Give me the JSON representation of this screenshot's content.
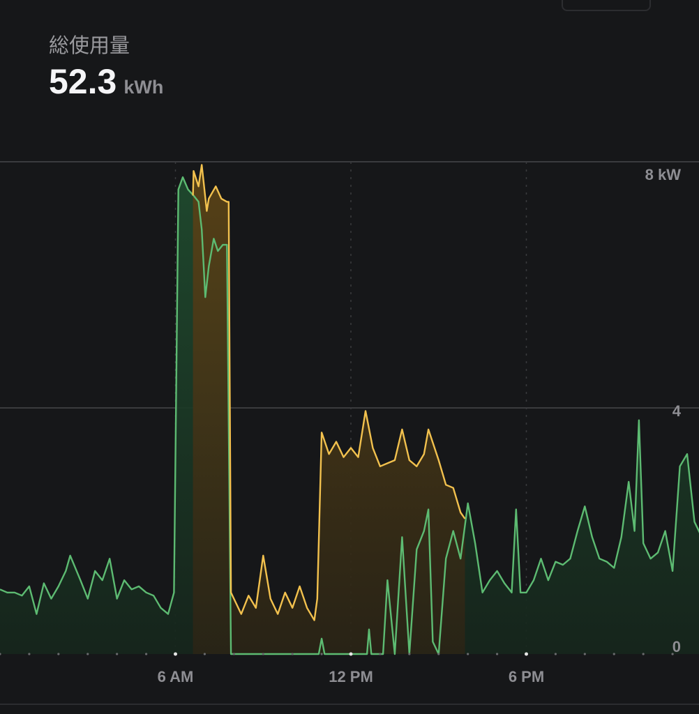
{
  "header": {
    "title": "総使用量",
    "total_value": "52.3",
    "total_unit": "kWh"
  },
  "colors": {
    "background": "#161719",
    "green": "#5dbb72",
    "yellow": "#f2c14e"
  },
  "chart_data": {
    "type": "area",
    "x_unit": "hour of day",
    "xlim": [
      0,
      24
    ],
    "ylim": [
      0,
      8
    ],
    "x_ticks": [
      {
        "value": 6,
        "label": "6 AM"
      },
      {
        "value": 12,
        "label": "12 PM"
      },
      {
        "value": 18,
        "label": "6 PM"
      }
    ],
    "y_ticks": [
      {
        "value": 8,
        "label": "8 kW"
      },
      {
        "value": 4,
        "label": "4"
      },
      {
        "value": 0,
        "label": "0"
      }
    ],
    "grid": true,
    "series": [
      {
        "color": "#5dbb72",
        "points": [
          [
            0,
            1.05
          ],
          [
            0.25,
            1.0
          ],
          [
            0.5,
            1.0
          ],
          [
            0.75,
            0.95
          ],
          [
            1.0,
            1.1
          ],
          [
            1.25,
            0.65
          ],
          [
            1.5,
            1.15
          ],
          [
            1.75,
            0.9
          ],
          [
            2.0,
            1.1
          ],
          [
            2.25,
            1.35
          ],
          [
            2.4,
            1.6
          ],
          [
            2.75,
            1.2
          ],
          [
            3.0,
            0.9
          ],
          [
            3.25,
            1.35
          ],
          [
            3.5,
            1.2
          ],
          [
            3.75,
            1.55
          ],
          [
            4.0,
            0.9
          ],
          [
            4.25,
            1.2
          ],
          [
            4.5,
            1.05
          ],
          [
            4.75,
            1.1
          ],
          [
            5.0,
            1.0
          ],
          [
            5.25,
            0.95
          ],
          [
            5.5,
            0.75
          ],
          [
            5.75,
            0.65
          ],
          [
            5.95,
            1.0
          ],
          [
            6.1,
            7.55
          ],
          [
            6.25,
            7.75
          ],
          [
            6.43,
            7.55
          ],
          [
            6.62,
            7.45
          ],
          [
            6.79,
            7.35
          ],
          [
            6.9,
            6.9
          ],
          [
            7.02,
            5.8
          ],
          [
            7.14,
            6.3
          ],
          [
            7.31,
            6.75
          ],
          [
            7.45,
            6.55
          ],
          [
            7.62,
            6.65
          ],
          [
            7.76,
            6.65
          ],
          [
            7.9,
            0
          ],
          [
            8.0,
            0
          ],
          [
            10.9,
            0
          ],
          [
            11.0,
            0.25
          ],
          [
            11.1,
            0
          ],
          [
            12.55,
            0
          ],
          [
            12.62,
            0.4
          ],
          [
            12.7,
            0
          ],
          [
            13.1,
            0
          ],
          [
            13.25,
            1.2
          ],
          [
            13.5,
            0
          ],
          [
            13.75,
            1.9
          ],
          [
            14.0,
            0
          ],
          [
            14.25,
            1.7
          ],
          [
            14.5,
            2.0
          ],
          [
            14.65,
            2.35
          ],
          [
            14.8,
            0.2
          ],
          [
            15.0,
            0
          ],
          [
            15.25,
            1.55
          ],
          [
            15.5,
            2.0
          ],
          [
            15.75,
            1.55
          ],
          [
            16.0,
            2.45
          ],
          [
            16.25,
            1.8
          ],
          [
            16.5,
            1.0
          ],
          [
            16.75,
            1.2
          ],
          [
            17.0,
            1.35
          ],
          [
            17.25,
            1.15
          ],
          [
            17.5,
            1.0
          ],
          [
            17.65,
            2.35
          ],
          [
            17.8,
            1.0
          ],
          [
            18.0,
            1.0
          ],
          [
            18.25,
            1.2
          ],
          [
            18.5,
            1.55
          ],
          [
            18.75,
            1.2
          ],
          [
            19.0,
            1.5
          ],
          [
            19.25,
            1.45
          ],
          [
            19.5,
            1.55
          ],
          [
            19.75,
            2.0
          ],
          [
            20.0,
            2.4
          ],
          [
            20.25,
            1.9
          ],
          [
            20.5,
            1.55
          ],
          [
            20.75,
            1.5
          ],
          [
            21.0,
            1.4
          ],
          [
            21.25,
            1.9
          ],
          [
            21.5,
            2.8
          ],
          [
            21.7,
            2.0
          ],
          [
            21.85,
            3.8
          ],
          [
            22.0,
            1.8
          ],
          [
            22.25,
            1.55
          ],
          [
            22.5,
            1.65
          ],
          [
            22.75,
            2.0
          ],
          [
            23.0,
            1.35
          ],
          [
            23.25,
            3.05
          ],
          [
            23.5,
            3.25
          ],
          [
            23.75,
            2.15
          ],
          [
            24.0,
            1.9
          ]
        ]
      },
      {
        "color": "#f2c14e",
        "points": [
          [
            6.6,
            7.45
          ],
          [
            6.62,
            7.85
          ],
          [
            6.79,
            7.6
          ],
          [
            6.9,
            7.95
          ],
          [
            7.07,
            7.2
          ],
          [
            7.14,
            7.4
          ],
          [
            7.38,
            7.6
          ],
          [
            7.57,
            7.4
          ],
          [
            7.76,
            7.35
          ],
          [
            7.82,
            7.35
          ],
          [
            7.9,
            1.0
          ],
          [
            8.0,
            0.9
          ],
          [
            8.25,
            0.65
          ],
          [
            8.5,
            0.95
          ],
          [
            8.75,
            0.75
          ],
          [
            9.0,
            1.6
          ],
          [
            9.25,
            0.9
          ],
          [
            9.5,
            0.65
          ],
          [
            9.75,
            1.0
          ],
          [
            10.0,
            0.75
          ],
          [
            10.25,
            1.1
          ],
          [
            10.5,
            0.75
          ],
          [
            10.75,
            0.55
          ],
          [
            10.85,
            0.9
          ],
          [
            11.0,
            3.6
          ],
          [
            11.25,
            3.25
          ],
          [
            11.5,
            3.45
          ],
          [
            11.75,
            3.2
          ],
          [
            12.0,
            3.35
          ],
          [
            12.25,
            3.2
          ],
          [
            12.5,
            3.95
          ],
          [
            12.75,
            3.35
          ],
          [
            13.0,
            3.05
          ],
          [
            13.25,
            3.1
          ],
          [
            13.5,
            3.15
          ],
          [
            13.75,
            3.65
          ],
          [
            14.0,
            3.15
          ],
          [
            14.25,
            3.05
          ],
          [
            14.5,
            3.25
          ],
          [
            14.65,
            3.65
          ],
          [
            15.0,
            3.15
          ],
          [
            15.25,
            2.75
          ],
          [
            15.5,
            2.7
          ],
          [
            15.75,
            2.3
          ],
          [
            15.9,
            2.2
          ]
        ]
      }
    ]
  }
}
